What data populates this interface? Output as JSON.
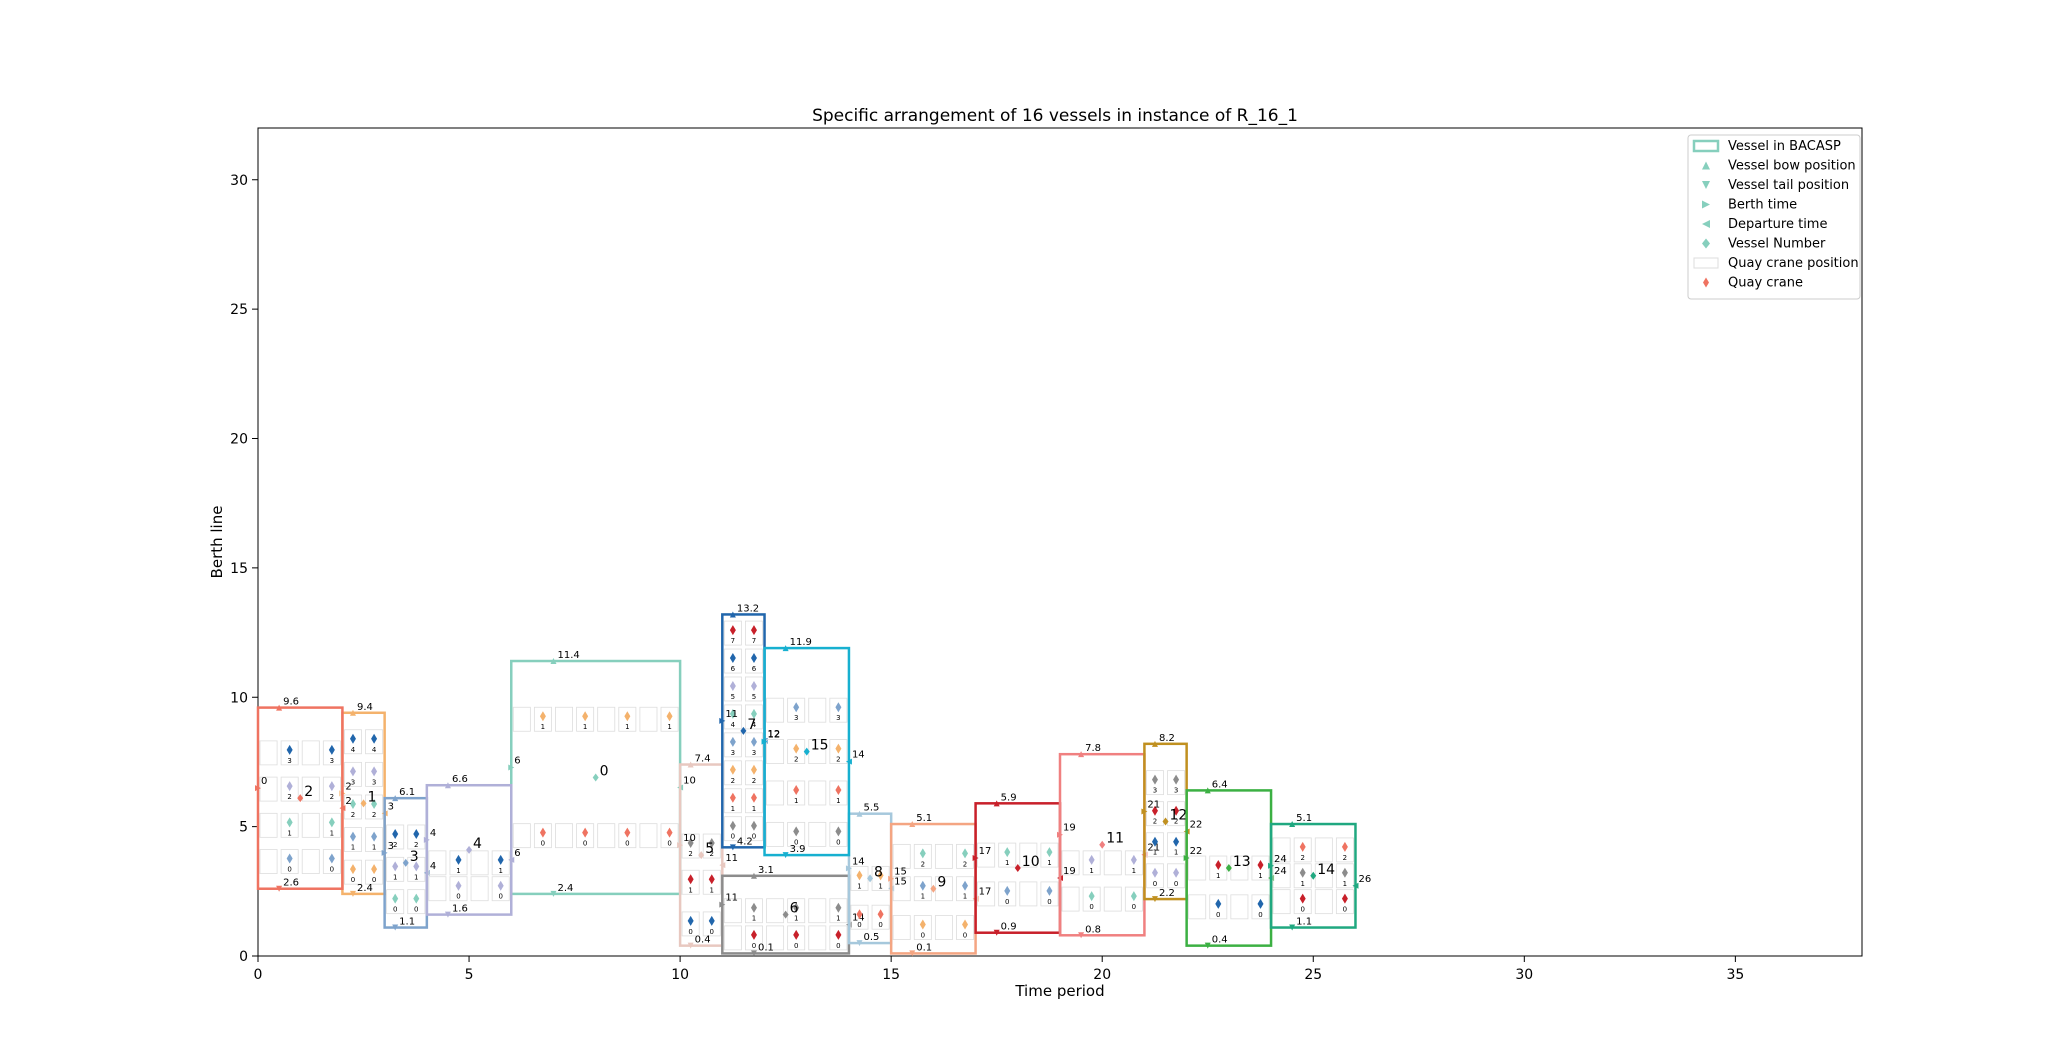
{
  "chart_data": {
    "type": "gantt-rectangles",
    "title": "Specific arrangement of 16 vessels in instance of R_16_1",
    "xlabel": "Time period",
    "ylabel": "Berth line",
    "xlim": [
      0,
      38
    ],
    "ylim": [
      0,
      32
    ],
    "x_ticks": [
      0,
      5,
      10,
      15,
      20,
      25,
      30,
      35
    ],
    "y_ticks": [
      0,
      5,
      10,
      15,
      20,
      25,
      30
    ],
    "grid": false,
    "legend_position": "top-right",
    "legend": [
      {
        "label": "Vessel in BACASP",
        "marker": "rect"
      },
      {
        "label": "Vessel bow position",
        "marker": "triangle-up"
      },
      {
        "label": "Vessel tail position",
        "marker": "triangle-down"
      },
      {
        "label": "Berth time",
        "marker": "triangle-right"
      },
      {
        "label": "Departure time",
        "marker": "triangle-left"
      },
      {
        "label": "Vessel Number",
        "marker": "diamond"
      },
      {
        "label": "Quay crane position",
        "marker": "grid-rect"
      },
      {
        "label": "Quay crane",
        "marker": "thin-diamond"
      }
    ],
    "vessels": [
      {
        "id": "0",
        "berth": 6,
        "depart": 10,
        "tail": 2.4,
        "bow": 11.4,
        "color": "#86cfbd",
        "tail_label": "2.4",
        "bow_label": "11.4",
        "berth_label": "6",
        "depart_label": "10",
        "crane_rows": [
          0.25,
          0.75
        ]
      },
      {
        "id": "1",
        "berth": 2,
        "depart": 3,
        "tail": 2.4,
        "bow": 9.4,
        "color": "#f4b26c",
        "tail_label": "2.4",
        "bow_label": "9.4",
        "berth_label": "2",
        "depart_label": "3",
        "crane_rows": [
          0.12,
          0.3,
          0.48,
          0.66,
          0.84
        ]
      },
      {
        "id": "2",
        "berth": 0,
        "depart": 2,
        "tail": 2.6,
        "bow": 9.6,
        "color": "#ef7361",
        "tail_label": "2.6",
        "bow_label": "9.6",
        "berth_label": "0",
        "depart_label": "2",
        "crane_rows": [
          0.15,
          0.35,
          0.55,
          0.75
        ]
      },
      {
        "id": "3",
        "berth": 3,
        "depart": 4,
        "tail": 1.1,
        "bow": 6.1,
        "color": "#7ea3cc",
        "tail_label": "1.1",
        "bow_label": "6.1",
        "berth_label": "3",
        "depart_label": "4",
        "crane_rows": [
          0.2,
          0.45,
          0.7
        ]
      },
      {
        "id": "4",
        "berth": 4,
        "depart": 6,
        "tail": 1.6,
        "bow": 6.6,
        "color": "#b0b0d8",
        "tail_label": "1.6",
        "bow_label": "6.6",
        "berth_label": "4",
        "depart_label": "6",
        "crane_rows": [
          0.2,
          0.4
        ]
      },
      {
        "id": "5",
        "berth": 10,
        "depart": 11,
        "tail": 0.4,
        "bow": 7.4,
        "color": "#e8c8c0",
        "tail_label": "0.4",
        "bow_label": "7.4",
        "berth_label": "10",
        "depart_label": "11",
        "crane_rows": [
          0.12,
          0.35,
          0.55
        ]
      },
      {
        "id": "6",
        "berth": 11,
        "depart": 14,
        "tail": 0.1,
        "bow": 3.1,
        "color": "#8c8c8c",
        "tail_label": "0.1",
        "bow_label": "3.1",
        "berth_label": "11",
        "depart_label": "14",
        "crane_rows": [
          0.2,
          0.55
        ]
      },
      {
        "id": "7",
        "berth": 11,
        "depart": 12,
        "tail": 4.2,
        "bow": 13.2,
        "color": "#2166ac",
        "tail_label": "4.2",
        "bow_label": "13.2",
        "berth_label": "11",
        "depart_label": "12",
        "crane_rows": [
          0.08,
          0.2,
          0.32,
          0.44,
          0.56,
          0.68,
          0.8,
          0.92
        ]
      },
      {
        "id": "8",
        "berth": 14,
        "depart": 15,
        "tail": 0.5,
        "bow": 5.5,
        "color": "#a6c8dc",
        "tail_label": "0.5",
        "bow_label": "5.5",
        "berth_label": "14",
        "depart_label": "15",
        "crane_rows": [
          0.2,
          0.5
        ]
      },
      {
        "id": "9",
        "berth": 15,
        "depart": 17,
        "tail": 0.1,
        "bow": 5.1,
        "color": "#f4a582",
        "tail_label": "0.1",
        "bow_label": "5.1",
        "berth_label": "15",
        "depart_label": "17",
        "crane_rows": [
          0.2,
          0.5,
          0.75
        ]
      },
      {
        "id": "10",
        "berth": 17,
        "depart": 19,
        "tail": 0.9,
        "bow": 5.9,
        "color": "#c8202a",
        "tail_label": "0.9",
        "bow_label": "5.9",
        "berth_label": "17",
        "depart_label": "19",
        "crane_rows": [
          0.3,
          0.6
        ]
      },
      {
        "id": "11",
        "berth": 19,
        "depart": 21,
        "tail": 0.8,
        "bow": 7.8,
        "color": "#f08080",
        "tail_label": "0.8",
        "bow_label": "7.8",
        "berth_label": "19",
        "depart_label": "21",
        "crane_rows": [
          0.2,
          0.4
        ]
      },
      {
        "id": "12",
        "berth": 21,
        "depart": 22,
        "tail": 2.2,
        "bow": 8.2,
        "color": "#c09020",
        "tail_label": "2.2",
        "bow_label": "8.2",
        "berth_label": "21",
        "depart_label": "22",
        "crane_rows": [
          0.15,
          0.35,
          0.55,
          0.75
        ]
      },
      {
        "id": "13",
        "berth": 22,
        "depart": 24,
        "tail": 0.4,
        "bow": 6.4,
        "color": "#3cb043",
        "tail_label": "0.4",
        "bow_label": "6.4",
        "berth_label": "22",
        "depart_label": "24",
        "crane_rows": [
          0.25,
          0.5
        ]
      },
      {
        "id": "14",
        "berth": 24,
        "depart": 26,
        "tail": 1.1,
        "bow": 5.1,
        "color": "#20a880",
        "tail_label": "1.1",
        "bow_label": "5.1",
        "berth_label": "24",
        "depart_label": "26",
        "crane_rows": [
          0.25,
          0.5,
          0.75
        ]
      },
      {
        "id": "15",
        "berth": 12,
        "depart": 14,
        "tail": 3.9,
        "bow": 11.9,
        "color": "#17b0d0",
        "tail_label": "3.9",
        "bow_label": "11.9",
        "berth_label": "12",
        "depart_label": "14",
        "crane_rows": [
          0.1,
          0.3,
          0.5,
          0.7
        ]
      }
    ]
  }
}
